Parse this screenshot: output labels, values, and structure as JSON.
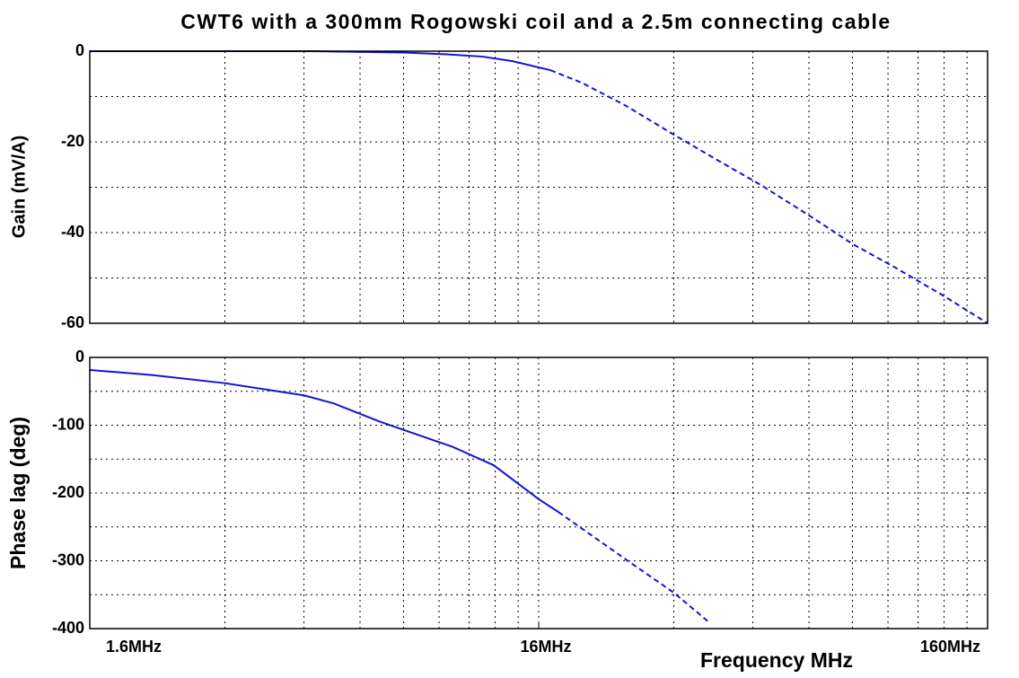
{
  "chart_data": [
    {
      "type": "line",
      "title": "CWT6 with a 300mm Rogowski coil and a 2.5m connecting cable",
      "ylabel": "Gain (mV/A)",
      "xscale": "log",
      "grid": true,
      "xlim": [
        1.6,
        160
      ],
      "ylim": [
        -60,
        0
      ],
      "yticks": [
        0,
        -20,
        -40,
        -60
      ],
      "ygrid": [
        -10,
        -30,
        -50
      ],
      "series": [
        {
          "color": "#1414d2",
          "style": "solid",
          "x": [
            1.6,
            3,
            5,
            8,
            10,
            12,
            14,
            17
          ],
          "y": [
            0,
            0,
            0,
            -0.3,
            -0.7,
            -1.2,
            -2.2,
            -4.2
          ]
        },
        {
          "color": "#1414d2",
          "style": "dashed",
          "x": [
            17,
            20,
            25,
            32,
            40,
            50,
            64,
            80,
            100,
            128,
            160
          ],
          "y": [
            -4.2,
            -7,
            -12,
            -18.4,
            -24,
            -29.5,
            -36.2,
            -42.5,
            -47.8,
            -54,
            -60
          ]
        }
      ]
    },
    {
      "type": "line",
      "ylabel": "Phase lag (deg)",
      "xlabel": "Frequency MHz",
      "xscale": "log",
      "grid": true,
      "xlim": [
        1.6,
        160
      ],
      "xticks": [
        {
          "value": 1.6,
          "label": "1.6MHz"
        },
        {
          "value": 16,
          "label": "16MHz"
        },
        {
          "value": 160,
          "label": "160MHz"
        }
      ],
      "ylim": [
        -400,
        0
      ],
      "yticks": [
        0,
        -100,
        -200,
        -300,
        -400
      ],
      "ygrid": [
        -50,
        -150,
        -250,
        -350
      ],
      "series": [
        {
          "color": "#1414d2",
          "style": "solid",
          "x": [
            1.6,
            2.2,
            3.2,
            4.8,
            5.6,
            7.1,
            10.3,
            12.7,
            16,
            17.7
          ],
          "y": [
            -18.5,
            -26,
            -38,
            -56,
            -68,
            -95,
            -132,
            -159,
            -209,
            -228
          ]
        },
        {
          "color": "#1414d2",
          "style": "dashed",
          "x": [
            17.7,
            25.4,
            32,
            38.4
          ],
          "y": [
            -228,
            -301,
            -347,
            -391
          ]
        }
      ]
    }
  ]
}
